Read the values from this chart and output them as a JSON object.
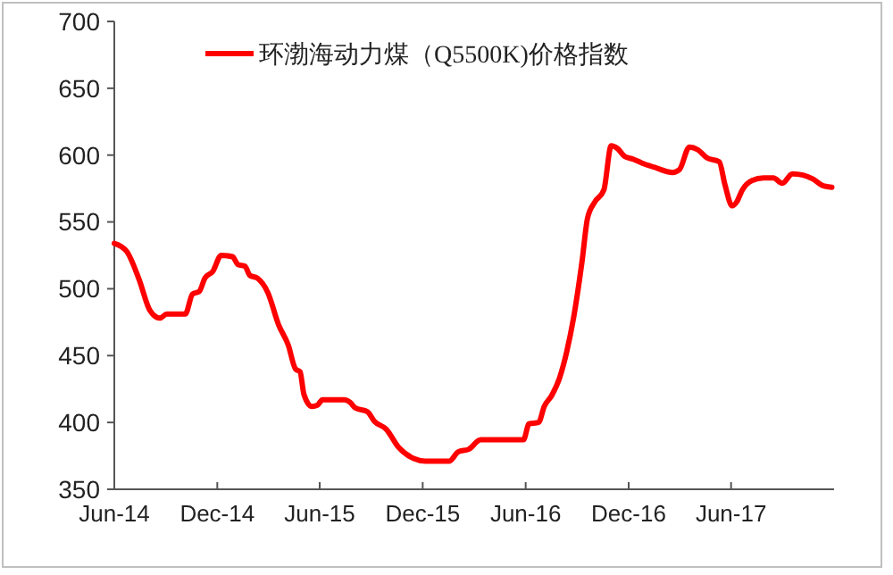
{
  "chart_data": {
    "type": "line",
    "x": [
      "2014-06-01",
      "2014-06-23",
      "2014-07-15",
      "2014-08-03",
      "2014-08-21",
      "2014-09-02",
      "2014-10-05",
      "2014-10-18",
      "2014-10-30",
      "2014-11-09",
      "2014-11-23",
      "2014-12-08",
      "2014-12-28",
      "2015-01-07",
      "2015-01-19",
      "2015-01-28",
      "2015-02-10",
      "2015-03-01",
      "2015-03-20",
      "2015-04-06",
      "2015-04-19",
      "2015-04-27",
      "2015-05-04",
      "2015-05-18",
      "2015-05-28",
      "2015-06-06",
      "2015-07-15",
      "2015-07-25",
      "2015-08-03",
      "2015-08-25",
      "2015-09-06",
      "2015-09-27",
      "2015-10-20",
      "2015-11-15",
      "2015-12-06",
      "2015-12-21",
      "2016-01-17",
      "2016-02-02",
      "2016-02-21",
      "2016-03-13",
      "2016-05-28",
      "2016-06-07",
      "2016-06-24",
      "2016-07-04",
      "2016-07-17",
      "2016-07-31",
      "2016-08-13",
      "2016-08-25",
      "2016-09-09",
      "2016-09-19",
      "2016-10-02",
      "2016-10-18",
      "2016-10-31",
      "2016-11-11",
      "2016-11-24",
      "2016-12-09",
      "2016-12-25",
      "2017-01-15",
      "2017-02-17",
      "2017-03-01",
      "2017-03-19",
      "2017-04-03",
      "2017-04-19",
      "2017-05-11",
      "2017-05-21",
      "2017-06-03",
      "2017-06-11",
      "2017-06-21",
      "2017-07-08",
      "2017-07-29",
      "2017-08-15",
      "2017-08-31",
      "2017-09-18",
      "2017-10-07",
      "2017-10-25",
      "2017-11-12",
      "2017-11-27"
    ],
    "series": [
      {
        "name": "环渤海动力煤（Q5500K)价格指数",
        "color": "#ff0000",
        "values": [
          534,
          528,
          507,
          484,
          478,
          481,
          481,
          496,
          498,
          508,
          513,
          525,
          524,
          518,
          517,
          510,
          508,
          497,
          473,
          458,
          440,
          438,
          421,
          412,
          413,
          417,
          417,
          415,
          411,
          408,
          401,
          395,
          381,
          373,
          371,
          371,
          371,
          378,
          380,
          387,
          387,
          399,
          400,
          412,
          420,
          433,
          453,
          478,
          520,
          553,
          565,
          574,
          607,
          605,
          599,
          597,
          594,
          591,
          587,
          589,
          606,
          604,
          598,
          595,
          578,
          562,
          565,
          574,
          581,
          583,
          583,
          579,
          586,
          585,
          582,
          577,
          576
        ]
      }
    ],
    "xlim": [
      "2014-06-01",
      "2017-12-01"
    ],
    "xticks": [
      {
        "value": "2014-06-01",
        "label": "Jun-14"
      },
      {
        "value": "2014-12-01",
        "label": "Dec-14"
      },
      {
        "value": "2015-06-01",
        "label": "Jun-15"
      },
      {
        "value": "2015-12-01",
        "label": "Dec-15"
      },
      {
        "value": "2016-06-01",
        "label": "Jun-16"
      },
      {
        "value": "2016-12-01",
        "label": "Dec-16"
      },
      {
        "value": "2017-06-01",
        "label": "Jun-17"
      }
    ],
    "ylim": [
      350,
      700
    ],
    "yticks": [
      350,
      400,
      450,
      500,
      550,
      600,
      650,
      700
    ],
    "grid": false,
    "legend": "top",
    "line_style": "solid",
    "marker": "none"
  }
}
